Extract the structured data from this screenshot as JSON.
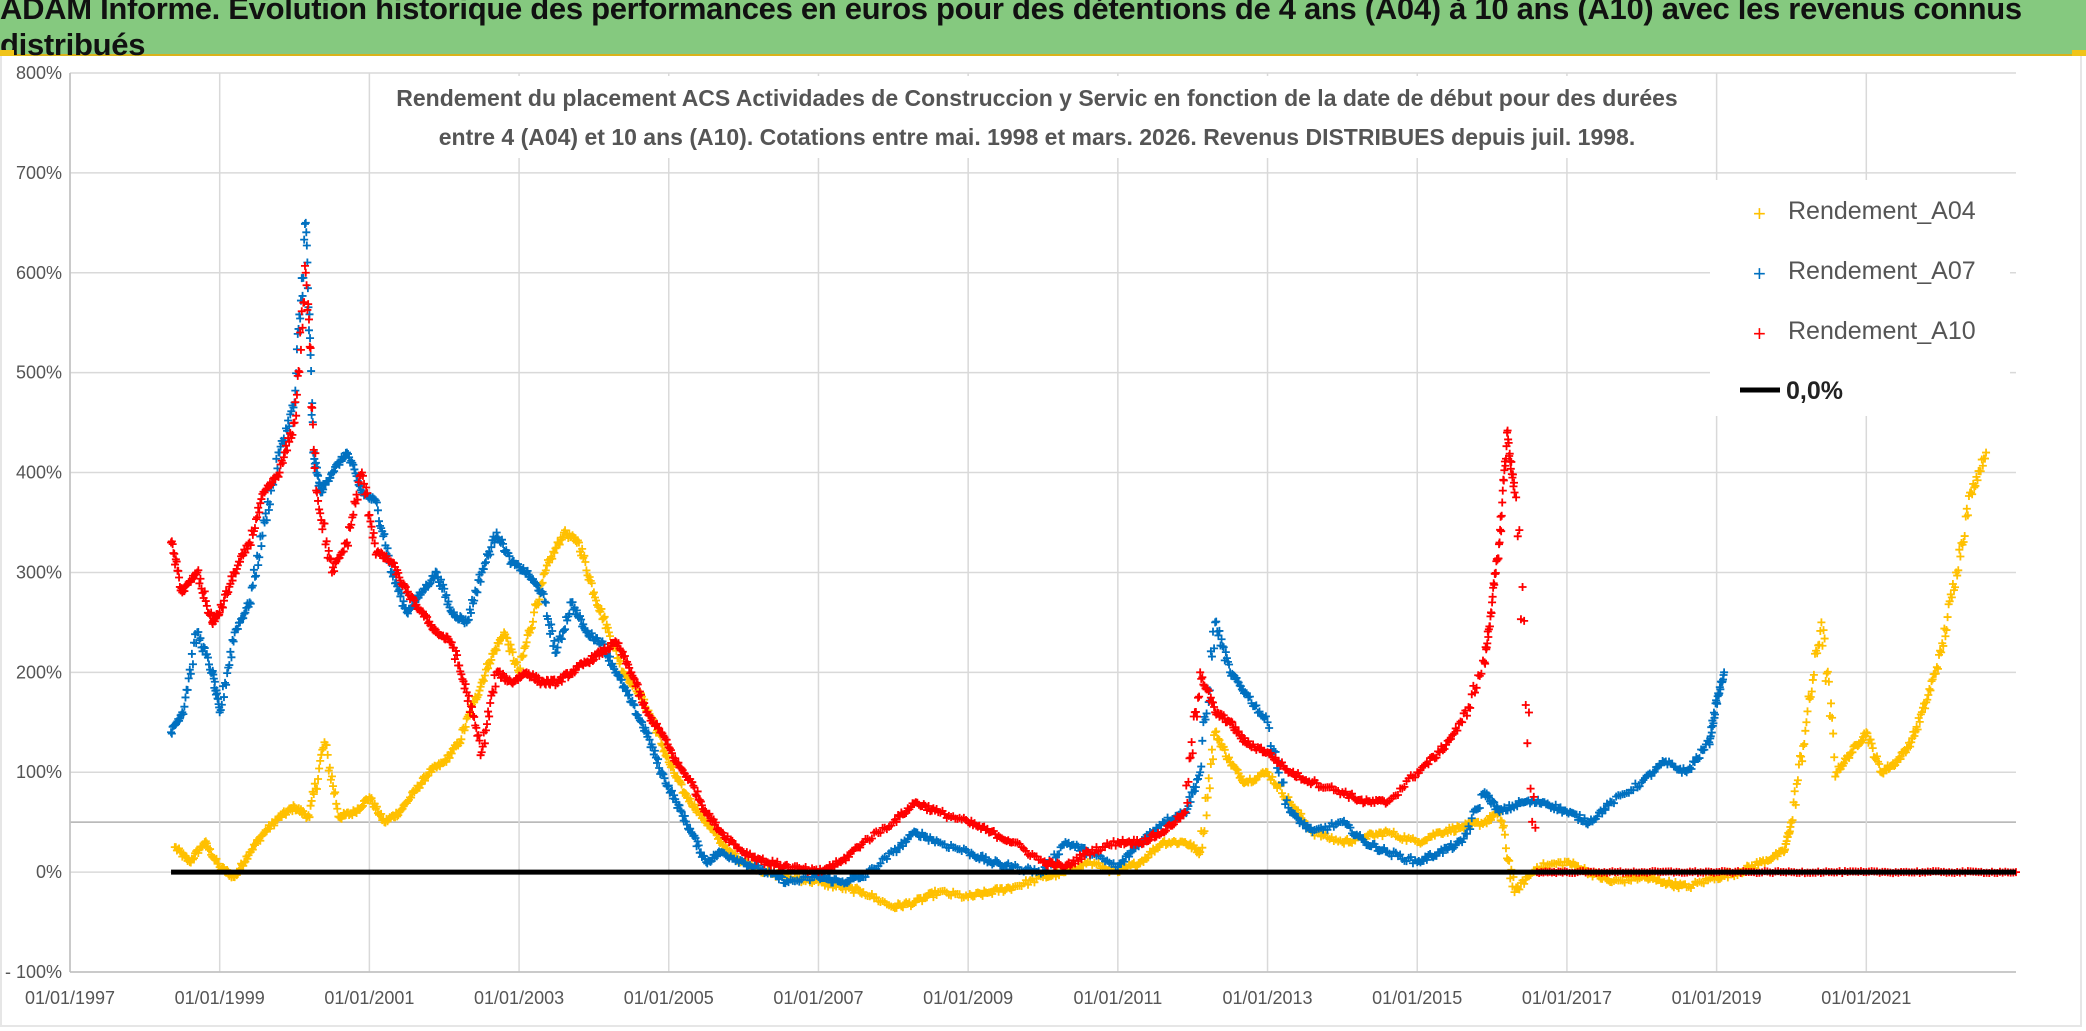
{
  "page": {
    "header_title": "ADAM Informe. Evolution historique des performances en euros pour des détentions de 4 ans (A04) à 10 ans (A10) avec les revenus connus distribués"
  },
  "colors": {
    "banner": "#85c97f",
    "a04": "#ffc000",
    "a07": "#0070c0",
    "a10": "#ff0000",
    "zero": "#000000",
    "grid": "#d9d9d9"
  },
  "chart_data": {
    "type": "scatter",
    "title_line1": "Rendement du placement ACS Actividades de Construccion y Servic en fonction de la date de début pour des durées",
    "title_line2": "entre 4 (A04) et 10 ans (A10). Cotations entre mai. 1998 et mars. 2026. Revenus DISTRIBUES depuis juil. 1998.",
    "x_range": [
      1997.0,
      2023.0
    ],
    "y_range": [
      -100,
      800
    ],
    "y_ticks": [
      -100,
      0,
      100,
      200,
      300,
      400,
      500,
      600,
      700,
      800
    ],
    "y_tick_labels": [
      "- 100%",
      "0%",
      "100%",
      "200%",
      "300%",
      "400%",
      "500%",
      "600%",
      "700%",
      "800%"
    ],
    "x_ticks": [
      1997.0,
      1999.0,
      2001.0,
      2003.0,
      2005.0,
      2007.0,
      2009.0,
      2011.0,
      2013.0,
      2015.0,
      2017.0,
      2019.0,
      2021.0
    ],
    "x_tick_labels": [
      "01/01/1997",
      "01/01/1999",
      "01/01/2001",
      "01/01/2003",
      "01/01/2005",
      "01/01/2007",
      "01/01/2009",
      "01/01/2011",
      "01/01/2013",
      "01/01/2015",
      "01/01/2017",
      "01/01/2019",
      "01/01/2021"
    ],
    "legend": {
      "position": "top-right",
      "a04": "Rendement_A04",
      "a07": "Rendement_A07",
      "a10": "Rendement_A10",
      "zero": "0,0%"
    },
    "zero_line": {
      "x_start": 1998.35,
      "x_end": 2023.0,
      "y": 0
    },
    "series": [
      {
        "name": "Rendement_A04",
        "color": "#ffc000",
        "x": [
          1998.4,
          1998.6,
          1998.8,
          1999.0,
          1999.2,
          1999.4,
          1999.6,
          1999.8,
          2000.0,
          2000.2,
          2000.4,
          2000.6,
          2000.8,
          2001.0,
          2001.2,
          2001.4,
          2001.6,
          2001.8,
          2002.0,
          2002.2,
          2002.4,
          2002.6,
          2002.8,
          2003.0,
          2003.2,
          2003.4,
          2003.6,
          2003.8,
          2004.0,
          2004.2,
          2004.4,
          2004.6,
          2004.8,
          2005.0,
          2005.2,
          2005.4,
          2005.6,
          2005.8,
          2006.0,
          2006.3,
          2006.6,
          2007.0,
          2007.3,
          2007.6,
          2008.0,
          2008.3,
          2008.6,
          2009.0,
          2009.3,
          2009.6,
          2010.0,
          2010.3,
          2010.6,
          2011.0,
          2011.3,
          2011.6,
          2011.9,
          2012.1,
          2012.3,
          2012.5,
          2012.7,
          2013.0,
          2013.3,
          2013.6,
          2014.0,
          2014.3,
          2014.6,
          2015.0,
          2015.3,
          2015.6,
          2015.9,
          2016.1,
          2016.3,
          2016.6,
          2017.0,
          2017.3,
          2017.6,
          2018.0,
          2018.3,
          2018.6,
          2019.0,
          2019.3,
          2019.6,
          2019.9,
          2020.0,
          2020.2,
          2020.4,
          2020.6,
          2020.8,
          2021.0,
          2021.2,
          2021.4,
          2021.6,
          2021.8,
          2022.0,
          2022.2,
          2022.4,
          2022.6
        ],
        "y": [
          25,
          10,
          30,
          5,
          -5,
          20,
          40,
          55,
          65,
          55,
          130,
          55,
          60,
          75,
          50,
          60,
          80,
          100,
          110,
          130,
          170,
          210,
          240,
          200,
          260,
          310,
          340,
          330,
          280,
          240,
          200,
          180,
          150,
          110,
          80,
          60,
          40,
          20,
          10,
          0,
          -5,
          -10,
          -15,
          -20,
          -35,
          -30,
          -20,
          -25,
          -20,
          -15,
          -5,
          0,
          10,
          0,
          10,
          30,
          30,
          20,
          140,
          110,
          90,
          100,
          70,
          40,
          30,
          35,
          40,
          30,
          40,
          45,
          50,
          60,
          -20,
          5,
          10,
          0,
          -10,
          -5,
          -10,
          -15,
          -5,
          0,
          10,
          20,
          50,
          150,
          250,
          100,
          120,
          140,
          100,
          110,
          130,
          170,
          220,
          300,
          380,
          420
        ]
      },
      {
        "name": "Rendement_A07",
        "color": "#0070c0",
        "x": [
          1998.35,
          1998.5,
          1998.7,
          1998.9,
          1999.0,
          1999.2,
          1999.4,
          1999.6,
          1999.8,
          2000.0,
          2000.15,
          2000.25,
          2000.35,
          2000.5,
          2000.7,
          2000.9,
          2001.1,
          2001.3,
          2001.5,
          2001.7,
          2001.9,
          2002.1,
          2002.3,
          2002.5,
          2002.7,
          2002.9,
          2003.1,
          2003.3,
          2003.5,
          2003.7,
          2003.9,
          2004.1,
          2004.3,
          2004.5,
          2004.7,
          2004.9,
          2005.1,
          2005.3,
          2005.5,
          2005.7,
          2006.0,
          2006.3,
          2006.6,
          2007.0,
          2007.3,
          2007.6,
          2008.0,
          2008.3,
          2008.6,
          2009.0,
          2009.3,
          2009.6,
          2010.0,
          2010.3,
          2010.6,
          2011.0,
          2011.3,
          2011.6,
          2011.9,
          2012.1,
          2012.3,
          2012.5,
          2012.7,
          2013.0,
          2013.3,
          2013.6,
          2014.0,
          2014.3,
          2014.6,
          2015.0,
          2015.3,
          2015.6,
          2015.9,
          2016.1,
          2016.4,
          2016.7,
          2017.0,
          2017.3,
          2017.6,
          2018.0,
          2018.3,
          2018.6,
          2018.9,
          2019.0,
          2019.1
        ],
        "y": [
          140,
          160,
          240,
          200,
          160,
          240,
          270,
          350,
          420,
          470,
          650,
          420,
          380,
          400,
          420,
          380,
          370,
          300,
          260,
          280,
          300,
          260,
          250,
          300,
          340,
          310,
          300,
          280,
          220,
          270,
          240,
          230,
          200,
          170,
          140,
          100,
          70,
          40,
          10,
          20,
          10,
          0,
          -10,
          -5,
          -10,
          -5,
          20,
          40,
          30,
          20,
          10,
          5,
          0,
          30,
          20,
          5,
          30,
          50,
          60,
          100,
          250,
          200,
          180,
          150,
          60,
          40,
          50,
          30,
          20,
          10,
          20,
          30,
          80,
          60,
          70,
          70,
          60,
          50,
          70,
          90,
          110,
          100,
          130,
          170,
          200
        ]
      },
      {
        "name": "Rendement_A10",
        "color": "#ff0000",
        "x": [
          1998.35,
          1998.5,
          1998.7,
          1998.9,
          1999.0,
          1999.2,
          1999.4,
          1999.6,
          1999.8,
          2000.0,
          2000.15,
          2000.3,
          2000.5,
          2000.7,
          2000.9,
          2001.1,
          2001.3,
          2001.5,
          2001.7,
          2001.9,
          2002.1,
          2002.3,
          2002.5,
          2002.7,
          2002.9,
          2003.1,
          2003.3,
          2003.5,
          2003.7,
          2003.9,
          2004.1,
          2004.3,
          2004.5,
          2004.7,
          2004.9,
          2005.1,
          2005.3,
          2005.5,
          2005.7,
          2006.0,
          2006.3,
          2006.6,
          2007.0,
          2007.3,
          2007.6,
          2008.0,
          2008.3,
          2008.6,
          2009.0,
          2009.3,
          2009.6,
          2010.0,
          2010.3,
          2010.6,
          2011.0,
          2011.3,
          2011.6,
          2011.9,
          2012.1,
          2012.3,
          2012.5,
          2012.7,
          2013.0,
          2013.3,
          2013.6,
          2014.0,
          2014.3,
          2014.6,
          2015.0,
          2015.3,
          2015.6,
          2015.9,
          2016.0,
          2016.1,
          2016.2,
          2016.3,
          2016.6,
          2017.0,
          2017.5,
          2018.0,
          2018.5,
          2019.0,
          2019.5,
          2020.0,
          2020.5,
          2021.0,
          2021.5,
          2022.0,
          2022.5,
          2023.0
        ],
        "y": [
          330,
          280,
          300,
          250,
          260,
          300,
          330,
          380,
          400,
          450,
          600,
          380,
          300,
          330,
          400,
          320,
          310,
          280,
          260,
          240,
          230,
          180,
          120,
          200,
          190,
          200,
          190,
          190,
          200,
          210,
          220,
          230,
          200,
          160,
          140,
          110,
          90,
          60,
          40,
          20,
          10,
          5,
          0,
          10,
          30,
          50,
          70,
          60,
          50,
          40,
          30,
          10,
          5,
          20,
          30,
          30,
          40,
          60,
          200,
          160,
          150,
          130,
          120,
          100,
          90,
          80,
          70,
          70,
          100,
          120,
          150,
          210,
          270,
          330,
          440,
          380,
          0,
          0,
          0,
          0,
          0,
          0,
          0,
          0,
          0,
          0,
          0,
          0,
          0,
          0
        ]
      }
    ]
  }
}
